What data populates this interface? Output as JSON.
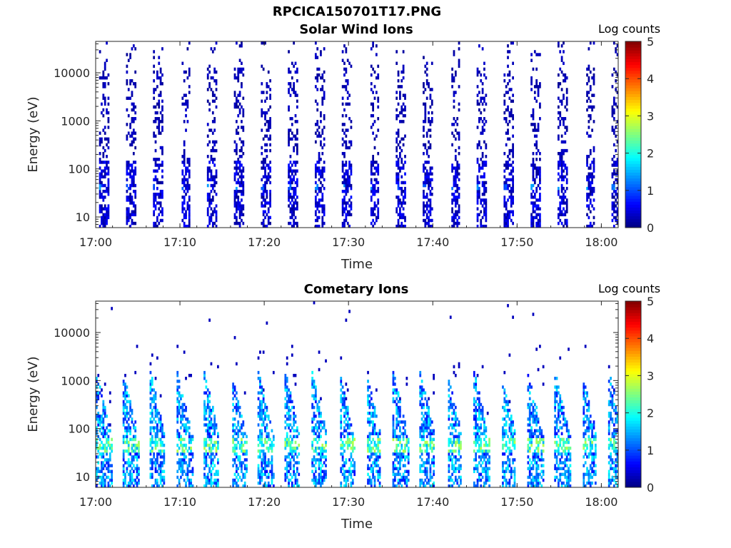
{
  "figure": {
    "title": "RPCICA150701T17.PNG"
  },
  "chart_data": [
    {
      "type": "heatmap",
      "title": "Solar Wind Ions",
      "xlabel": "Time",
      "ylabel": "Energy (eV)",
      "x_ticks": [
        "17:00",
        "17:10",
        "17:20",
        "17:30",
        "17:40",
        "17:50",
        "18:00"
      ],
      "x_range": [
        "17:00",
        "18:02"
      ],
      "y_scale": "log",
      "y_ticks": [
        "10",
        "100",
        "1000",
        "10000"
      ],
      "y_range": [
        6,
        45000
      ],
      "colorbar": {
        "label": "Log counts",
        "range": [
          0,
          5
        ],
        "ticks": [
          "0",
          "1",
          "2",
          "3",
          "4",
          "5"
        ],
        "colormap": "jet"
      },
      "sweep_period_min": 3.2,
      "sweep_start_min": 0.4,
      "sweep_duration_min": 1.1,
      "typical_log_counts_high_energy": 0.1,
      "typical_log_counts_low_energy": 0.4,
      "peak_log_counts": 1.5,
      "peak_energy_eV": 40
    },
    {
      "type": "heatmap",
      "title": "Cometary Ions",
      "xlabel": "Time",
      "ylabel": "Energy (eV)",
      "x_ticks": [
        "17:00",
        "17:10",
        "17:20",
        "17:30",
        "17:40",
        "17:50",
        "18:00"
      ],
      "x_range": [
        "17:00",
        "18:02"
      ],
      "y_scale": "log",
      "y_ticks": [
        "10",
        "100",
        "1000",
        "10000"
      ],
      "y_range": [
        6,
        45000
      ],
      "colorbar": {
        "label": "Log counts",
        "range": [
          0,
          5
        ],
        "ticks": [
          "0",
          "1",
          "2",
          "3",
          "4",
          "5"
        ],
        "colormap": "jet"
      },
      "sweep_period_min": 3.2,
      "sweep_start_min": 0.0,
      "sweep_duration_min": 1.8,
      "typical_log_counts_high_energy": 0.3,
      "typical_log_counts_low_energy": 1.6,
      "peak_log_counts": 2.8,
      "peak_energy_eV": 40
    }
  ]
}
